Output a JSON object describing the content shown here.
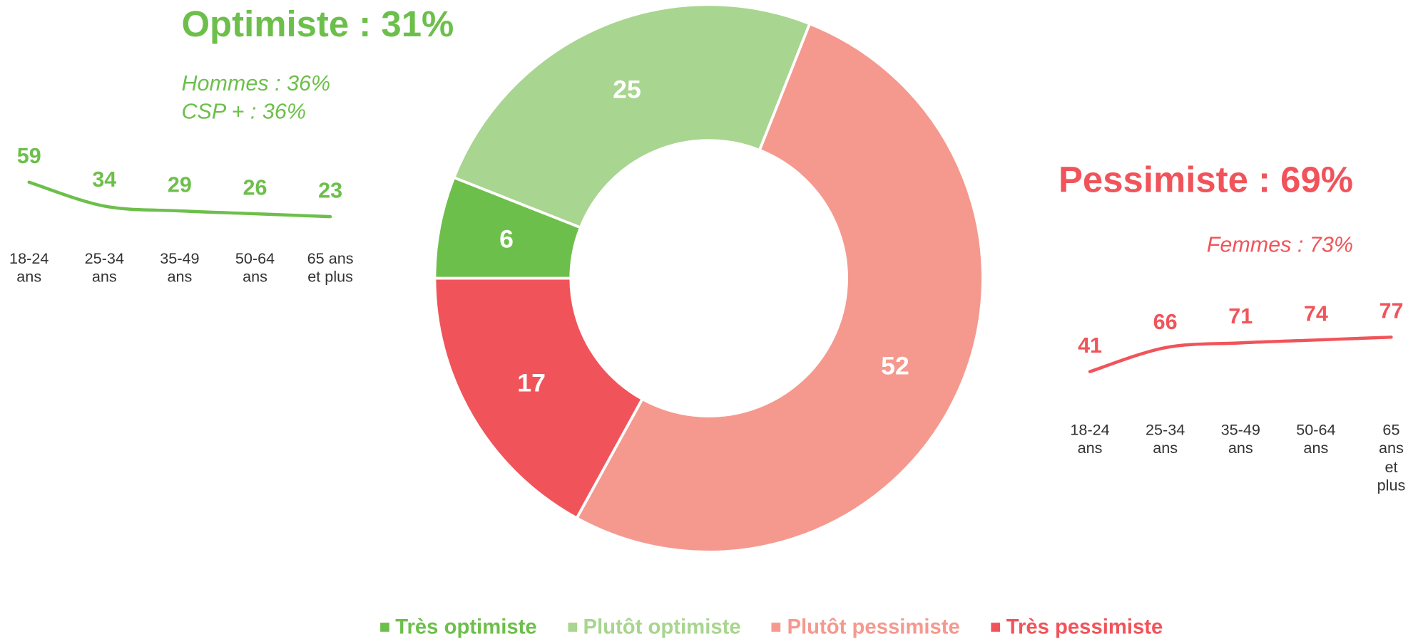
{
  "chart_data": [
    {
      "type": "donut",
      "categories": [
        "Très optimiste",
        "Plutôt optimiste",
        "Plutôt pessimiste",
        "Très pessimiste"
      ],
      "values": [
        6,
        25,
        52,
        17
      ],
      "colors": [
        "#6dbf4b",
        "#a8d58f",
        "#f5998f",
        "#f0545a"
      ]
    },
    {
      "type": "line",
      "title": "Optimiste : 31%",
      "annotations": [
        "Hommes : 36%",
        "CSP + : 36%"
      ],
      "categories": [
        "18-24\nans",
        "25-34\nans",
        "35-49\nans",
        "50-64\nans",
        "65 ans\net plus"
      ],
      "values": [
        59,
        34,
        29,
        26,
        23
      ],
      "color": "#6dbf4b"
    },
    {
      "type": "line",
      "title": "Pessimiste : 69%",
      "annotations": [
        "Femmes : 73%"
      ],
      "categories": [
        "18-24\nans",
        "25-34\nans",
        "35-49\nans",
        "50-64\nans",
        "65 ans\net plus"
      ],
      "values": [
        41,
        66,
        71,
        74,
        77
      ],
      "color": "#f0545a"
    }
  ]
}
